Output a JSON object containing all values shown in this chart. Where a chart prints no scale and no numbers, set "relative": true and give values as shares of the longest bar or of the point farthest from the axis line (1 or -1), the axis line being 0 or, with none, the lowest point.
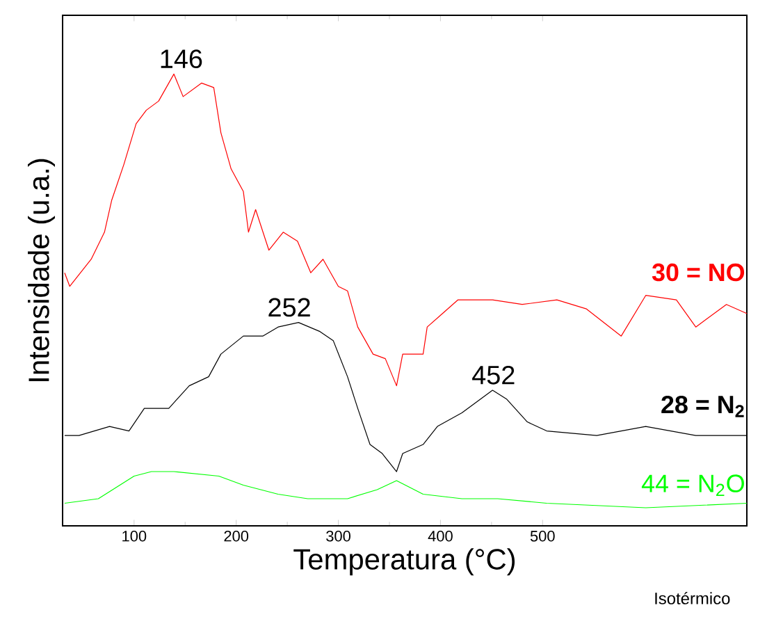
{
  "chart_data": {
    "type": "line",
    "relative": true,
    "xlabel": "Temperatura (°C)",
    "ylabel": "Intensidade (u.a.)",
    "xlim": [
      30,
      700
    ],
    "xticks": [
      100,
      200,
      300,
      400,
      500
    ],
    "series": [
      {
        "name": "30 = NO",
        "color": "#ff0000",
        "x": [
          32,
          37,
          58,
          71,
          78,
          90,
          102,
          112,
          124,
          139,
          148,
          166,
          178,
          185,
          195,
          207,
          212,
          219,
          232,
          246,
          260,
          273,
          285,
          300,
          309,
          319,
          334,
          346,
          357,
          363,
          383,
          387,
          402,
          417,
          451,
          480,
          514,
          543,
          577,
          601,
          631,
          650,
          680,
          700
        ],
        "values": [
          0.56,
          0.53,
          0.59,
          0.65,
          0.72,
          0.8,
          0.89,
          0.92,
          0.94,
          1,
          0.95,
          0.98,
          0.97,
          0.87,
          0.79,
          0.74,
          0.65,
          0.7,
          0.61,
          0.65,
          0.63,
          0.56,
          0.59,
          0.53,
          0.52,
          0.44,
          0.38,
          0.37,
          0.31,
          0.38,
          0.38,
          0.44,
          0.47,
          0.5,
          0.5,
          0.49,
          0.5,
          0.48,
          0.42,
          0.51,
          0.5,
          0.44,
          0.49,
          0.47
        ]
      },
      {
        "name": "28 = N$_{2}$",
        "color": "#000000",
        "x": [
          32,
          46,
          76,
          95,
          110,
          134,
          154,
          173,
          185,
          207,
          226,
          241,
          261,
          282,
          295,
          309,
          319,
          331,
          343,
          357,
          363,
          383,
          397,
          421,
          451,
          465,
          485,
          504,
          553,
          601,
          650,
          700
        ],
        "values": [
          0.2,
          0.2,
          0.22,
          0.21,
          0.26,
          0.26,
          0.31,
          0.33,
          0.38,
          0.42,
          0.42,
          0.44,
          0.45,
          0.43,
          0.41,
          0.33,
          0.26,
          0.18,
          0.16,
          0.12,
          0.16,
          0.18,
          0.22,
          0.25,
          0.3,
          0.28,
          0.23,
          0.21,
          0.2,
          0.22,
          0.2,
          0.2
        ]
      },
      {
        "name": "44 = N$_{2}$O",
        "color": "#00ff00",
        "x": [
          32,
          65,
          86,
          100,
          117,
          139,
          183,
          207,
          241,
          270,
          309,
          338,
          357,
          383,
          421,
          456,
          504,
          601,
          700
        ],
        "values": [
          0.05,
          0.06,
          0.09,
          0.11,
          0.12,
          0.12,
          0.11,
          0.09,
          0.07,
          0.06,
          0.06,
          0.08,
          0.1,
          0.07,
          0.06,
          0.06,
          0.05,
          0.04,
          0.05
        ]
      }
    ],
    "annotations": [
      {
        "text": "146",
        "x": 146,
        "y": 1
      },
      {
        "text": "252",
        "x": 252,
        "y": 0.45
      },
      {
        "text": "452",
        "x": 452,
        "y": 0.3
      },
      "Isotérmico"
    ],
    "grid": false,
    "marker": "none",
    "line_style": "solid"
  }
}
